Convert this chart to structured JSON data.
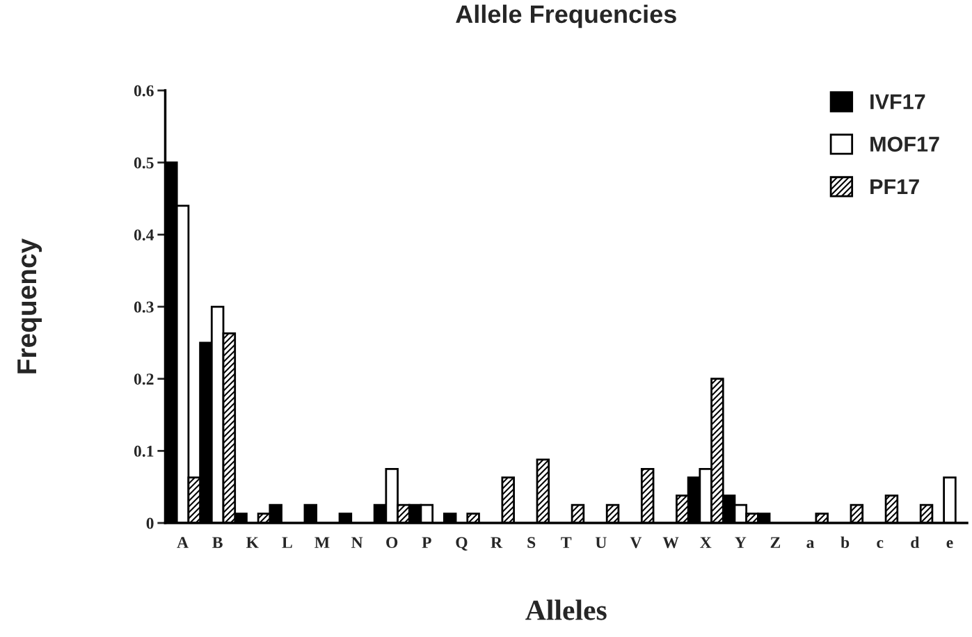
{
  "chart_data": {
    "type": "bar",
    "title": "Allele Frequencies",
    "xlabel": "Alleles",
    "ylabel": "Frequency",
    "categories": [
      "A",
      "B",
      "K",
      "L",
      "M",
      "N",
      "O",
      "P",
      "Q",
      "R",
      "S",
      "T",
      "U",
      "V",
      "W",
      "X",
      "Y",
      "Z",
      "a",
      "b",
      "c",
      "d",
      "e"
    ],
    "series": [
      {
        "name": "IVF17",
        "color": "#000000",
        "values": [
          0.5,
          0.25,
          0.013,
          0.025,
          0.025,
          0.013,
          0.025,
          0.025,
          0.013,
          null,
          null,
          null,
          null,
          null,
          null,
          0.063,
          0.038,
          0.013,
          null,
          null,
          null,
          null,
          null
        ]
      },
      {
        "name": "MOF17",
        "color": "#ffffff",
        "values": [
          0.44,
          0.3,
          null,
          null,
          null,
          null,
          0.075,
          0.025,
          null,
          null,
          null,
          null,
          null,
          null,
          null,
          0.075,
          0.025,
          null,
          null,
          null,
          null,
          null,
          0.063
        ]
      },
      {
        "name": "PF17",
        "color": "#000000",
        "values": [
          0.063,
          0.263,
          0.013,
          null,
          null,
          null,
          0.025,
          null,
          0.013,
          0.063,
          0.088,
          0.025,
          0.025,
          0.075,
          0.038,
          0.2,
          0.013,
          null,
          0.013,
          0.025,
          0.038,
          0.025,
          null
        ]
      }
    ],
    "ylim": [
      0,
      0.6
    ],
    "yticks": [
      {
        "value": 0,
        "label": "0"
      },
      0.1,
      0.2,
      0.3,
      0.4,
      0.5,
      0.6
    ],
    "grid": false,
    "legend": "top right"
  }
}
